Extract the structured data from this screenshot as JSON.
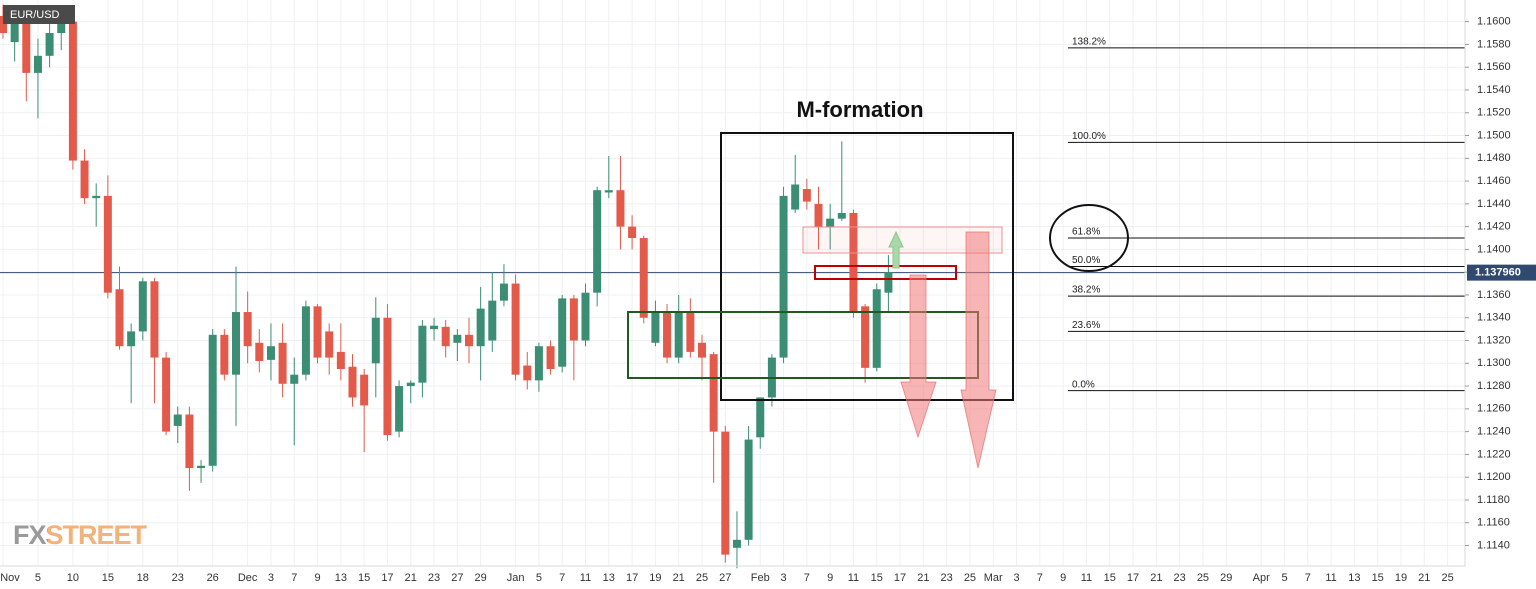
{
  "chart_data": {
    "type": "candlestick",
    "symbol": "EUR/USD",
    "title": "M-formation",
    "watermark": "FXSTREET",
    "up_color": "#3b8d74",
    "down_color": "#e35a4b",
    "grid": true,
    "categories": [
      "Nov",
      null,
      null,
      "5",
      null,
      null,
      "10",
      null,
      null,
      "15",
      null,
      null,
      "18",
      null,
      null,
      "23",
      null,
      null,
      "26",
      null,
      null,
      "Dec",
      null,
      "3",
      null,
      "7",
      null,
      "9",
      null,
      "13",
      null,
      "15",
      null,
      "17",
      null,
      "21",
      null,
      "23",
      null,
      "27",
      null,
      "29",
      null,
      null,
      "Jan",
      null,
      "5",
      null,
      "7",
      null,
      "11",
      null,
      "13",
      null,
      "17",
      null,
      "19",
      null,
      "21",
      null,
      "25",
      null,
      "27",
      null,
      null,
      "Feb",
      null,
      "3",
      null,
      "7",
      null,
      "9",
      null,
      "11",
      null,
      "15",
      null,
      "17",
      null,
      "21",
      null,
      "23",
      null,
      "25",
      null,
      "Mar",
      null,
      "3",
      null,
      "7",
      null,
      "9",
      null,
      "11",
      null,
      "15",
      null,
      "17",
      null,
      "21",
      null,
      "23",
      null,
      "25",
      null,
      "29",
      null,
      null,
      "Apr",
      null,
      "5",
      null,
      "7",
      null,
      "11",
      null,
      "13",
      null,
      "15",
      null,
      "19",
      null,
      "21",
      null,
      "25"
    ],
    "open": [
      1.1605,
      1.1582,
      1.1605,
      1.1555,
      1.157,
      1.159,
      1.16,
      1.1478,
      1.1445,
      1.1447,
      1.1365,
      1.1315,
      1.1328,
      1.1372,
      1.1305,
      1.1245,
      1.1255,
      1.1208,
      1.121,
      1.1325,
      1.129,
      1.1345,
      1.1318,
      1.1303,
      1.1318,
      1.1282,
      1.129,
      1.135,
      1.1328,
      1.131,
      1.1297,
      1.129,
      1.13,
      1.134,
      1.124,
      1.128,
      1.1283,
      1.133,
      1.1332,
      1.1318,
      1.1325,
      1.1315,
      1.132,
      1.1355,
      1.137,
      1.1298,
      1.1285,
      1.1315,
      1.1297,
      1.1357,
      1.132,
      1.1362,
      1.145,
      1.1452,
      1.142,
      1.141,
      1.1318,
      1.1345,
      1.1305,
      1.1345,
      1.1318,
      1.1308,
      1.124,
      1.1138,
      1.1145,
      1.1235,
      1.127,
      1.1305,
      1.1435,
      1.1453,
      1.144,
      1.142,
      1.1427,
      1.1432,
      1.135,
      1.1296,
      1.1362,
      null,
      null,
      null,
      null,
      null,
      null,
      null,
      null,
      null,
      null,
      null,
      null,
      null,
      null,
      null,
      null,
      null,
      null,
      null,
      null,
      null,
      null,
      null,
      null,
      null,
      null,
      null,
      null,
      null,
      null,
      null,
      null,
      null,
      null,
      null,
      null,
      null,
      null,
      null,
      null,
      null,
      null,
      null,
      null,
      null,
      null,
      null,
      null
    ],
    "high": [
      1.1615,
      1.1612,
      1.161,
      1.1585,
      1.16,
      1.1605,
      1.161,
      1.1488,
      1.1458,
      1.1465,
      1.1385,
      1.1335,
      1.1375,
      1.1375,
      1.131,
      1.1262,
      1.1262,
      1.1215,
      1.133,
      1.133,
      1.1385,
      1.1363,
      1.133,
      1.1335,
      1.1335,
      1.1305,
      1.1355,
      1.1352,
      1.1335,
      1.1335,
      1.1308,
      1.1295,
      1.1358,
      1.1352,
      1.1285,
      1.1285,
      1.1338,
      1.134,
      1.1338,
      1.133,
      1.134,
      1.1367,
      1.138,
      1.1387,
      1.1378,
      1.131,
      1.1318,
      1.132,
      1.136,
      1.136,
      1.137,
      1.1455,
      1.1482,
      1.1482,
      1.143,
      1.1412,
      1.1355,
      1.1352,
      1.136,
      1.1357,
      1.1325,
      1.131,
      1.1245,
      1.117,
      1.1245,
      1.127,
      1.1308,
      1.1455,
      1.1483,
      1.1462,
      1.1455,
      1.144,
      1.1495,
      1.1435,
      1.1352,
      1.137,
      1.1395,
      null,
      null,
      null,
      null,
      null,
      null,
      null,
      null,
      null,
      null,
      null,
      null,
      null,
      null,
      null,
      null,
      null,
      null,
      null,
      null,
      null,
      null,
      null,
      null,
      null,
      null,
      null,
      null,
      null,
      null,
      null,
      null,
      null,
      null,
      null,
      null,
      null,
      null,
      null,
      null,
      null,
      null,
      null,
      null,
      null,
      null,
      null,
      null
    ],
    "low": [
      1.1585,
      1.1565,
      1.153,
      1.1515,
      1.156,
      1.1575,
      1.147,
      1.144,
      1.142,
      1.1357,
      1.1312,
      1.1265,
      1.132,
      1.1265,
      1.1237,
      1.123,
      1.1188,
      1.1195,
      1.1205,
      1.1285,
      1.1245,
      1.13,
      1.1292,
      1.1285,
      1.127,
      1.1228,
      1.1285,
      1.13,
      1.129,
      1.1285,
      1.1262,
      1.1222,
      1.127,
      1.1232,
      1.1235,
      1.1265,
      1.127,
      1.132,
      1.1305,
      1.1302,
      1.13,
      1.1285,
      1.131,
      1.135,
      1.1285,
      1.1277,
      1.1275,
      1.129,
      1.1292,
      1.1285,
      1.1315,
      1.135,
      1.1445,
      1.14,
      1.14,
      1.1335,
      1.1315,
      1.13,
      1.13,
      1.1305,
      1.1285,
      1.1195,
      1.1125,
      1.112,
      1.114,
      1.1225,
      1.1262,
      1.13,
      1.1432,
      1.1435,
      1.14,
      1.14,
      1.1425,
      1.134,
      1.1283,
      1.1293,
      1.1345,
      null,
      null,
      null,
      null,
      null,
      null,
      null,
      null,
      null,
      null,
      null,
      null,
      null,
      null,
      null,
      null,
      null,
      null,
      null,
      null,
      null,
      null,
      null,
      null,
      null,
      null,
      null,
      null,
      null,
      null,
      null,
      null,
      null,
      null,
      null,
      null,
      null,
      null,
      null,
      null,
      null,
      null,
      null,
      null,
      null,
      null,
      null,
      null
    ],
    "close": [
      1.159,
      1.1605,
      1.1555,
      1.157,
      1.159,
      1.1598,
      1.1478,
      1.1445,
      1.1447,
      1.1362,
      1.1315,
      1.1328,
      1.1372,
      1.1305,
      1.124,
      1.1255,
      1.1208,
      1.121,
      1.1325,
      1.129,
      1.1345,
      1.1315,
      1.1302,
      1.1315,
      1.1282,
      1.129,
      1.135,
      1.1305,
      1.1305,
      1.1295,
      1.127,
      1.1263,
      1.134,
      1.1237,
      1.128,
      1.1283,
      1.1333,
      1.1333,
      1.1315,
      1.1325,
      1.1315,
      1.1348,
      1.1355,
      1.137,
      1.129,
      1.1285,
      1.1315,
      1.1295,
      1.1357,
      1.132,
      1.1362,
      1.1452,
      1.1452,
      1.142,
      1.141,
      1.134,
      1.1345,
      1.1305,
      1.1345,
      1.131,
      1.1305,
      1.124,
      1.1132,
      1.1145,
      1.1233,
      1.127,
      1.1305,
      1.1447,
      1.1457,
      1.1442,
      1.142,
      1.1427,
      1.1432,
      1.1345,
      1.1296,
      1.1365,
      1.138,
      null,
      null,
      null,
      null,
      null,
      null,
      null,
      null,
      null,
      null,
      null,
      null,
      null,
      null,
      null,
      null,
      null,
      null,
      null,
      null,
      null,
      null,
      null,
      null,
      null,
      null,
      null,
      null,
      null,
      null,
      null,
      null,
      null,
      null,
      null,
      null,
      null,
      null,
      null,
      null,
      null,
      null,
      null,
      null,
      null,
      null,
      null,
      null
    ],
    "ylim": [
      1.1122,
      1.1619
    ],
    "yticks": [
      {
        "value": 1.114,
        "label": "1.1140"
      },
      {
        "value": 1.116,
        "label": "1.1160"
      },
      {
        "value": 1.118,
        "label": "1.1180"
      },
      {
        "value": 1.12,
        "label": "1.1200"
      },
      {
        "value": 1.122,
        "label": "1.1220"
      },
      {
        "value": 1.124,
        "label": "1.1240"
      },
      {
        "value": 1.126,
        "label": "1.1260"
      },
      {
        "value": 1.128,
        "label": "1.1280"
      },
      {
        "value": 1.13,
        "label": "1.1300"
      },
      {
        "value": 1.132,
        "label": "1.1320"
      },
      {
        "value": 1.134,
        "label": "1.1340"
      },
      {
        "value": 1.136,
        "label": "1.1360"
      },
      {
        "value": 1.138,
        "label": "1.1380"
      },
      {
        "value": 1.14,
        "label": "1.1400"
      },
      {
        "value": 1.142,
        "label": "1.1420"
      },
      {
        "value": 1.144,
        "label": "1.1440"
      },
      {
        "value": 1.146,
        "label": "1.1460"
      },
      {
        "value": 1.148,
        "label": "1.1480"
      },
      {
        "value": 1.15,
        "label": "1.1500"
      },
      {
        "value": 1.152,
        "label": "1.1520"
      },
      {
        "value": 1.154,
        "label": "1.1540"
      },
      {
        "value": 1.156,
        "label": "1.1560"
      },
      {
        "value": 1.158,
        "label": "1.1580"
      },
      {
        "value": 1.16,
        "label": "1.1600"
      }
    ],
    "current_price": {
      "value": 1.13796,
      "label": "1.137960"
    },
    "fib_levels": [
      {
        "label": "138.2%",
        "value": 1.1577
      },
      {
        "label": "100.0%",
        "value": 1.1494
      },
      {
        "label": "61.8%",
        "value": 1.141
      },
      {
        "label": "50.0%",
        "value": 1.1385
      },
      {
        "label": "38.2%",
        "value": 1.1359
      },
      {
        "label": "23.6%",
        "value": 1.1328
      },
      {
        "label": "0.0%",
        "value": 1.1276
      }
    ]
  }
}
